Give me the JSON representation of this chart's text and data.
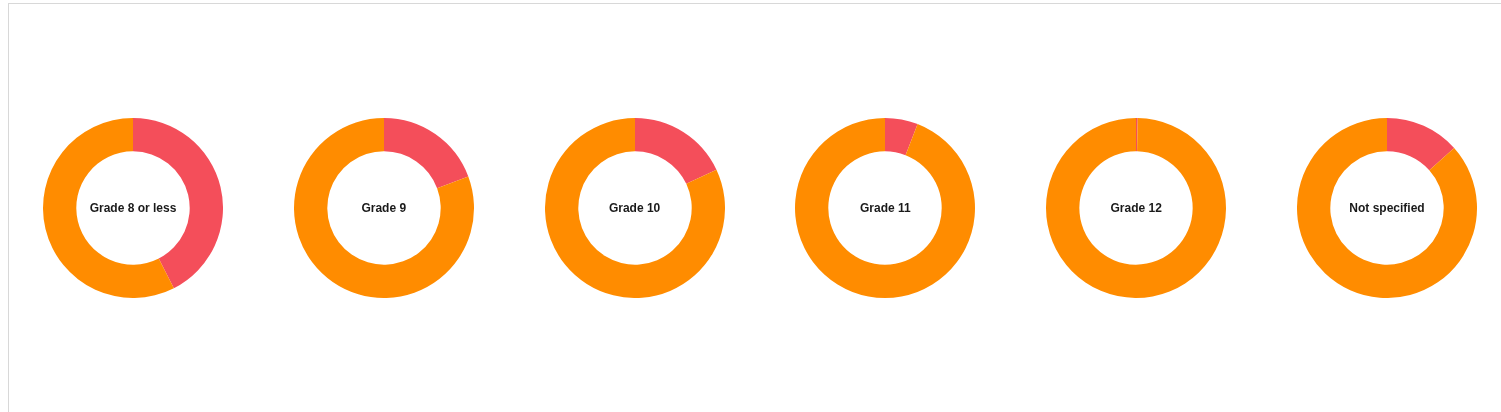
{
  "chart_data": [
    {
      "type": "donut",
      "title": "Grade 8 or less",
      "categories": [
        null,
        null
      ],
      "values": [
        42.5,
        57.5
      ],
      "colors": [
        "#f44e5a",
        "#ff8c00"
      ]
    },
    {
      "type": "donut",
      "title": "Grade 9",
      "categories": [
        null,
        null
      ],
      "values": [
        19.3,
        80.7
      ],
      "colors": [
        "#f44e5a",
        "#ff8c00"
      ]
    },
    {
      "type": "donut",
      "title": "Grade 10",
      "categories": [
        null,
        null
      ],
      "values": [
        18,
        82
      ],
      "colors": [
        "#f44e5a",
        "#ff8c00"
      ]
    },
    {
      "type": "donut",
      "title": "Grade 11",
      "categories": [
        null,
        null
      ],
      "values": [
        5.9,
        94.1
      ],
      "colors": [
        "#f44e5a",
        "#ff8c00"
      ]
    },
    {
      "type": "donut",
      "title": "Grade 12",
      "categories": [
        null,
        null
      ],
      "values": [
        0.3,
        99.7
      ],
      "colors": [
        "#f44e5a",
        "#ff8c00"
      ]
    },
    {
      "type": "donut",
      "title": "Not specified",
      "categories": [
        null,
        null
      ],
      "values": [
        13.4,
        86.6
      ],
      "colors": [
        "#f44e5a",
        "#ff8c00"
      ]
    }
  ]
}
